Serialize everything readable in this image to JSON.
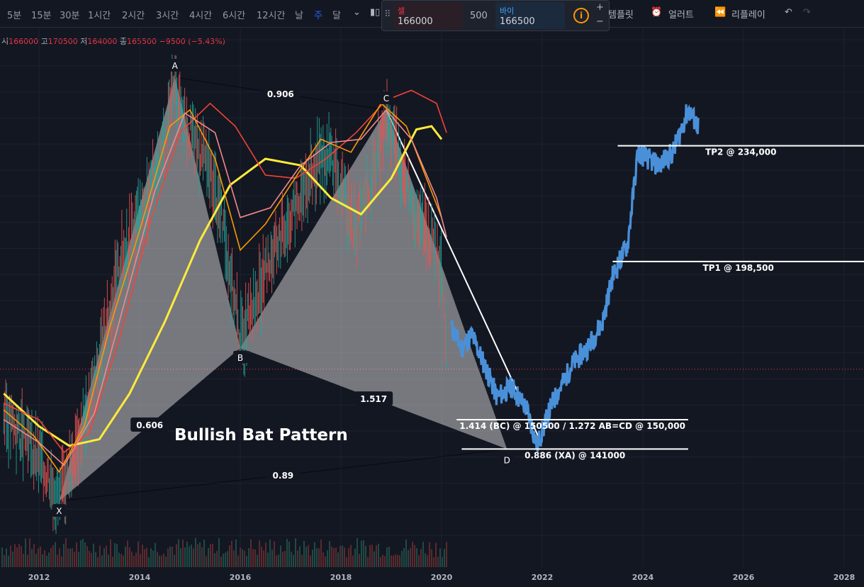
{
  "toolbar": {
    "timeframes": [
      "5분",
      "15분",
      "30분",
      "1시간",
      "2시간",
      "3시간",
      "4시간",
      "6시간",
      "12시간",
      "날",
      "주",
      "달"
    ],
    "active_timeframe": "주",
    "template_label": "템플릿",
    "alert_label": "얼러트",
    "replay_label": "리플레이"
  },
  "trade": {
    "sell_label": "셀",
    "sell_price": "166000",
    "quantity": "500",
    "buy_label": "바이",
    "buy_price": "166500",
    "plus": "+",
    "minus": "−"
  },
  "ohlc": {
    "open_label": "시",
    "open": "166000",
    "high_label": "고",
    "high": "170500",
    "low_label": "저",
    "low": "164000",
    "close_label": "종",
    "close": "165500",
    "change": "−9500 (−5.43%)"
  },
  "colors": {
    "background": "#131722",
    "bull_candle": "#26a69a",
    "bear_candle": "#ef5350",
    "projection": "#4a90d9",
    "pattern_fill": "#ffffff",
    "ma_yellow": "#ffeb3b",
    "ma_orange": "#ff9800",
    "ma_red": "#f44336",
    "ma_pink": "#f48a8a"
  },
  "chart_data": {
    "type": "line",
    "title": "Bullish Bat Pattern",
    "x_ticks": [
      "2012",
      "2014",
      "2016",
      "2018",
      "2020",
      "2022",
      "2024",
      "2026",
      "2028"
    ],
    "xlim": [
      2011.3,
      2028.5
    ],
    "ylim": [
      120000,
      270000
    ],
    "pattern_points": [
      {
        "label": "X",
        "x": 2012.4,
        "y": 125000
      },
      {
        "label": "A",
        "x": 2014.7,
        "y": 255000
      },
      {
        "label": "B",
        "x": 2016.0,
        "y": 172000
      },
      {
        "label": "C",
        "x": 2018.9,
        "y": 245000
      },
      {
        "label": "D",
        "x": 2021.3,
        "y": 141000
      }
    ],
    "ratios": [
      {
        "text": "0.606",
        "between": [
          "X",
          "B"
        ]
      },
      {
        "text": "0.906",
        "between": [
          "A",
          "C"
        ]
      },
      {
        "text": "1.517",
        "between": [
          "B",
          "D"
        ]
      },
      {
        "text": "0.89",
        "between": [
          "X",
          "D"
        ]
      }
    ],
    "levels": [
      {
        "label": "TP2 @ 234,000",
        "value": 234000,
        "x_start": 2023.5
      },
      {
        "label": "TP1 @ 198,500",
        "value": 198500,
        "x_start": 2023.4
      },
      {
        "label": "1.414 (BC) @ 150500 / 1.272 AB=CD @ 150,000",
        "value": 150000,
        "x_start": 2020.3,
        "x_end": 2024.9
      },
      {
        "label": "0.886 (XA) @ 141000",
        "value": 141000,
        "x_start": 2020.4,
        "x_end": 2024.9
      }
    ],
    "current_price": 165500,
    "price_series": [
      [
        2011.3,
        152000
      ],
      [
        2011.6,
        146000
      ],
      [
        2011.9,
        140000
      ],
      [
        2012.2,
        133000
      ],
      [
        2012.4,
        125000
      ],
      [
        2012.7,
        140000
      ],
      [
        2013.0,
        155000
      ],
      [
        2013.3,
        175000
      ],
      [
        2013.6,
        198000
      ],
      [
        2013.9,
        210000
      ],
      [
        2014.2,
        218000
      ],
      [
        2014.5,
        235000
      ],
      [
        2014.7,
        253000
      ],
      [
        2015.0,
        238000
      ],
      [
        2015.3,
        230000
      ],
      [
        2015.6,
        215000
      ],
      [
        2015.8,
        196000
      ],
      [
        2016.0,
        175000
      ],
      [
        2016.3,
        185000
      ],
      [
        2016.6,
        200000
      ],
      [
        2016.9,
        210000
      ],
      [
        2017.2,
        218000
      ],
      [
        2017.5,
        228000
      ],
      [
        2017.8,
        232000
      ],
      [
        2018.0,
        220000
      ],
      [
        2018.3,
        208000
      ],
      [
        2018.6,
        222000
      ],
      [
        2018.9,
        243000
      ],
      [
        2019.2,
        228000
      ],
      [
        2019.5,
        212000
      ],
      [
        2019.8,
        205000
      ],
      [
        2020.0,
        196000
      ],
      [
        2020.1,
        168000
      ]
    ],
    "projection_series": [
      [
        2020.2,
        178000
      ],
      [
        2020.4,
        172000
      ],
      [
        2020.6,
        176000
      ],
      [
        2020.9,
        165000
      ],
      [
        2021.1,
        157000
      ],
      [
        2021.4,
        160000
      ],
      [
        2021.7,
        153000
      ],
      [
        2021.9,
        142000
      ],
      [
        2022.2,
        155000
      ],
      [
        2022.6,
        167000
      ],
      [
        2022.9,
        172000
      ],
      [
        2023.2,
        180000
      ],
      [
        2023.4,
        194000
      ],
      [
        2023.7,
        204000
      ],
      [
        2023.9,
        232000
      ],
      [
        2024.1,
        230000
      ],
      [
        2024.3,
        228000
      ],
      [
        2024.6,
        232000
      ],
      [
        2024.9,
        245000
      ],
      [
        2025.1,
        240000
      ]
    ],
    "ma_series": [
      {
        "color_key": "ma_yellow",
        "points": [
          [
            2011.3,
            158000
          ],
          [
            2012.0,
            148000
          ],
          [
            2012.6,
            142000
          ],
          [
            2013.2,
            144000
          ],
          [
            2013.8,
            158000
          ],
          [
            2014.5,
            180000
          ],
          [
            2015.2,
            205000
          ],
          [
            2015.8,
            222000
          ],
          [
            2016.5,
            230000
          ],
          [
            2017.2,
            228000
          ],
          [
            2017.8,
            218000
          ],
          [
            2018.4,
            213000
          ],
          [
            2019.0,
            224000
          ],
          [
            2019.5,
            239000
          ],
          [
            2019.8,
            240000
          ],
          [
            2020.0,
            236000
          ]
        ]
      },
      {
        "color_key": "ma_red",
        "points": [
          [
            2011.3,
            155000
          ],
          [
            2012.0,
            150000
          ],
          [
            2012.5,
            140000
          ],
          [
            2013.0,
            146000
          ],
          [
            2013.6,
            175000
          ],
          [
            2014.2,
            210000
          ],
          [
            2014.8,
            238000
          ],
          [
            2015.4,
            247000
          ],
          [
            2015.9,
            240000
          ],
          [
            2016.5,
            225000
          ],
          [
            2017.1,
            224000
          ],
          [
            2017.7,
            230000
          ],
          [
            2018.3,
            238000
          ],
          [
            2018.9,
            248000
          ],
          [
            2019.4,
            251000
          ],
          [
            2019.9,
            247000
          ],
          [
            2020.1,
            238000
          ]
        ]
      },
      {
        "color_key": "ma_orange",
        "points": [
          [
            2011.3,
            153000
          ],
          [
            2011.9,
            145000
          ],
          [
            2012.4,
            134000
          ],
          [
            2012.9,
            148000
          ],
          [
            2013.4,
            178000
          ],
          [
            2014.0,
            208000
          ],
          [
            2014.6,
            240000
          ],
          [
            2015.0,
            245000
          ],
          [
            2015.5,
            230000
          ],
          [
            2016.0,
            202000
          ],
          [
            2016.5,
            210000
          ],
          [
            2017.0,
            222000
          ],
          [
            2017.6,
            236000
          ],
          [
            2018.2,
            232000
          ],
          [
            2018.8,
            247000
          ],
          [
            2019.3,
            240000
          ],
          [
            2019.8,
            220000
          ],
          [
            2020.0,
            212000
          ]
        ]
      },
      {
        "color_key": "ma_pink",
        "points": [
          [
            2011.3,
            150000
          ],
          [
            2012.0,
            143000
          ],
          [
            2012.5,
            136000
          ],
          [
            2013.1,
            152000
          ],
          [
            2013.7,
            186000
          ],
          [
            2014.3,
            220000
          ],
          [
            2014.9,
            244000
          ],
          [
            2015.5,
            238000
          ],
          [
            2016.0,
            212000
          ],
          [
            2016.6,
            215000
          ],
          [
            2017.2,
            228000
          ],
          [
            2017.8,
            235000
          ],
          [
            2018.4,
            236000
          ],
          [
            2018.9,
            245000
          ],
          [
            2019.4,
            236000
          ],
          [
            2019.9,
            218000
          ],
          [
            2020.1,
            206000
          ]
        ]
      }
    ]
  }
}
